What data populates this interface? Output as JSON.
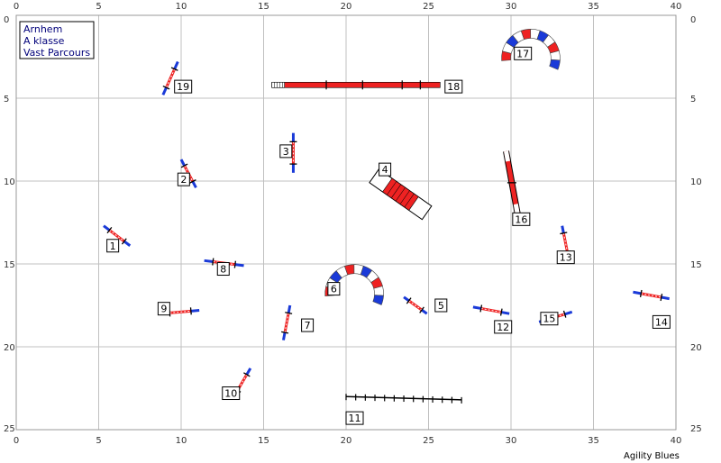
{
  "legend": {
    "lines": [
      "Arnhem",
      "A klasse",
      "Vast Parcours"
    ]
  },
  "credit": "Agility Blues",
  "axes": {
    "x_ticks": [
      "0",
      "5",
      "10",
      "15",
      "20",
      "25",
      "30",
      "35",
      "40"
    ],
    "y_ticks": [
      "0",
      "5",
      "10",
      "15",
      "20",
      "25"
    ]
  },
  "colors": {
    "grid": "#c0c0c0",
    "red": "#ee2222",
    "blue": "#1a3ad8",
    "black": "#000000"
  },
  "obstacles": [
    {
      "num": "1",
      "type": "hurdle",
      "x1": 5.3,
      "y1": 12.7,
      "x2": 6.9,
      "y2": 13.9,
      "lx": 5.5,
      "ly": 13.9
    },
    {
      "num": "2",
      "type": "hurdle",
      "x1": 10.0,
      "y1": 8.7,
      "x2": 10.9,
      "y2": 10.4,
      "lx": 9.8,
      "ly": 9.9
    },
    {
      "num": "3",
      "type": "hurdle",
      "x1": 16.8,
      "y1": 7.1,
      "x2": 16.8,
      "y2": 9.5,
      "lx": 16.0,
      "ly": 8.2
    },
    {
      "num": "4",
      "type": "tyre",
      "cx": 23.3,
      "cy": 10.8,
      "angle": 35,
      "len": 3.9,
      "w": 1.0,
      "lx": 22.0,
      "ly": 9.3
    },
    {
      "num": "5",
      "type": "hurdle",
      "x1": 23.5,
      "y1": 17.0,
      "x2": 24.9,
      "y2": 18.0,
      "lx": 25.4,
      "ly": 17.5
    },
    {
      "num": "6",
      "type": "tunnel",
      "cx": 20.5,
      "cy": 16.8,
      "r": 1.5,
      "w": 0.55,
      "lx": 18.9,
      "ly": 16.5
    },
    {
      "num": "7",
      "type": "hurdle",
      "x1": 16.6,
      "y1": 17.5,
      "x2": 16.2,
      "y2": 19.6,
      "lx": 17.3,
      "ly": 18.7
    },
    {
      "num": "8",
      "type": "hurdle",
      "x1": 11.4,
      "y1": 14.8,
      "x2": 13.8,
      "y2": 15.1,
      "lx": 12.2,
      "ly": 15.3
    },
    {
      "num": "9",
      "type": "hurdle",
      "x1": 8.8,
      "y1": 18.0,
      "x2": 11.1,
      "y2": 17.8,
      "lx": 8.6,
      "ly": 17.7
    },
    {
      "num": "10",
      "type": "hurdle",
      "x1": 14.2,
      "y1": 21.3,
      "x2": 13.2,
      "y2": 23.0,
      "lx": 12.5,
      "ly": 22.8
    },
    {
      "num": "11",
      "type": "walk",
      "x1": 20.0,
      "y1": 23.0,
      "x2": 27.0,
      "y2": 23.2,
      "lx": 20.0,
      "ly": 24.3
    },
    {
      "num": "12",
      "type": "hurdle",
      "x1": 27.7,
      "y1": 17.6,
      "x2": 29.9,
      "y2": 18.0,
      "lx": 29.0,
      "ly": 18.8
    },
    {
      "num": "13",
      "type": "hurdle",
      "x1": 33.1,
      "y1": 12.7,
      "x2": 33.5,
      "y2": 14.7,
      "lx": 32.8,
      "ly": 14.6
    },
    {
      "num": "14",
      "type": "hurdle",
      "x1": 37.4,
      "y1": 16.7,
      "x2": 39.6,
      "y2": 17.1,
      "lx": 38.6,
      "ly": 18.5
    },
    {
      "num": "15",
      "type": "hurdle",
      "x1": 33.7,
      "y1": 17.9,
      "x2": 31.7,
      "y2": 18.5,
      "lx": 31.8,
      "ly": 18.3
    },
    {
      "num": "16",
      "type": "seesaw",
      "x1": 29.7,
      "y1": 8.2,
      "x2": 30.4,
      "y2": 12.0,
      "lx": 30.1,
      "ly": 12.3
    },
    {
      "num": "17",
      "type": "tunnel",
      "cx": 31.2,
      "cy": 2.6,
      "r": 1.5,
      "w": 0.55,
      "lx": 30.2,
      "ly": 2.3
    },
    {
      "num": "18",
      "type": "dogwalk",
      "x1": 15.5,
      "y1": 4.2,
      "x2": 25.7,
      "y2": 4.2,
      "lx": 26.0,
      "ly": 4.3
    },
    {
      "num": "19",
      "type": "hurdle",
      "x1": 9.8,
      "y1": 2.8,
      "x2": 8.9,
      "y2": 4.8,
      "lx": 9.6,
      "ly": 4.3
    }
  ]
}
